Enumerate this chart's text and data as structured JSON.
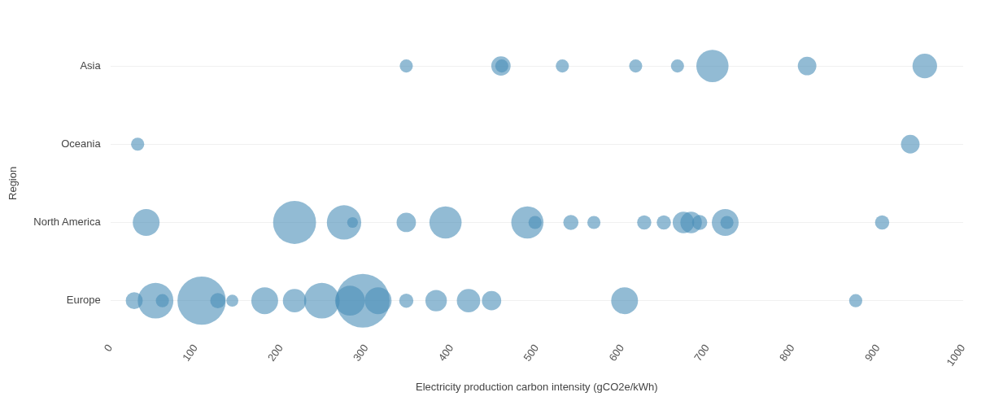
{
  "chart_data": {
    "type": "bubble",
    "orientation": "horizontal",
    "xlabel": "Electricity production carbon intensity (gCO2e/kWh)",
    "ylabel": "Region",
    "categories": [
      "Asia",
      "Oceania",
      "North America",
      "Europe"
    ],
    "xlim": [
      0,
      1000
    ],
    "xticks": [
      0,
      100,
      200,
      300,
      400,
      500,
      600,
      700,
      800,
      900,
      1000
    ],
    "grid": "y",
    "series": [
      {
        "color": "#4a8db7",
        "x": [
          "Asia",
          "Asia",
          "Asia",
          "Asia",
          "Asia",
          "Asia",
          "Asia",
          "Asia",
          "Asia",
          "Oceania",
          "Oceania",
          "North America",
          "North America",
          "North America",
          "North America",
          "North America",
          "North America",
          "North America",
          "North America",
          "North America",
          "North America",
          "North America",
          "North America",
          "North America",
          "North America",
          "North America",
          "North America",
          "North America",
          "North America",
          "Europe",
          "Europe",
          "Europe",
          "Europe",
          "Europe",
          "Europe",
          "Europe",
          "Europe",
          "Europe",
          "Europe",
          "Europe",
          "Europe",
          "Europe",
          "Europe",
          "Europe",
          "Europe",
          "Europe",
          "Europe"
        ],
        "values": [
          347,
          458,
          459,
          530,
          616,
          665,
          706,
          817,
          955,
          32,
          938,
          42,
          216,
          274,
          284,
          347,
          393,
          489,
          498,
          540,
          567,
          626,
          649,
          672,
          681,
          691,
          721,
          723,
          905,
          28,
          53,
          61,
          107,
          126,
          143,
          181,
          216,
          248,
          281,
          296,
          314,
          347,
          382,
          420,
          447,
          603,
          874
        ],
        "sizes": [
          0.06,
          0.13,
          0.06,
          0.06,
          0.06,
          0.06,
          0.36,
          0.12,
          0.21,
          0.06,
          0.12,
          0.25,
          0.64,
          0.41,
          0.04,
          0.13,
          0.36,
          0.36,
          0.06,
          0.08,
          0.06,
          0.07,
          0.07,
          0.16,
          0.16,
          0.08,
          0.25,
          0.06,
          0.07,
          0.1,
          0.44,
          0.06,
          0.81,
          0.08,
          0.05,
          0.25,
          0.19,
          0.44,
          0.31,
          1,
          0.25,
          0.07,
          0.16,
          0.19,
          0.13,
          0.25,
          0.06
        ]
      }
    ]
  }
}
